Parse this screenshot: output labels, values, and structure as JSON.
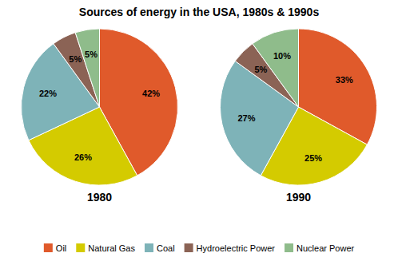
{
  "title": "Sources of energy in the USA, 1980s & 1990s",
  "chart_data": [
    {
      "type": "pie",
      "title": "1980",
      "categories": [
        "Oil",
        "Natural Gas",
        "Coal",
        "Hydroelectric Power",
        "Nuclear Power"
      ],
      "values": [
        42,
        26,
        22,
        5,
        5
      ],
      "value_labels": [
        "42%",
        "26%",
        "22%",
        "5%",
        "5%"
      ],
      "colors": [
        "#E05A2B",
        "#D4CB00",
        "#7EB3B8",
        "#8B6355",
        "#8FBC8B"
      ],
      "data_labels": true,
      "legend": "bottom"
    },
    {
      "type": "pie",
      "title": "1990",
      "categories": [
        "Oil",
        "Natural Gas",
        "Coal",
        "Hydroelectric Power",
        "Nuclear Power"
      ],
      "values": [
        33,
        25,
        27,
        5,
        10
      ],
      "value_labels": [
        "33%",
        "25%",
        "27%",
        "5%",
        "10%"
      ],
      "colors": [
        "#E05A2B",
        "#D4CB00",
        "#7EB3B8",
        "#8B6355",
        "#8FBC8B"
      ],
      "data_labels": true,
      "legend": "bottom"
    }
  ]
}
